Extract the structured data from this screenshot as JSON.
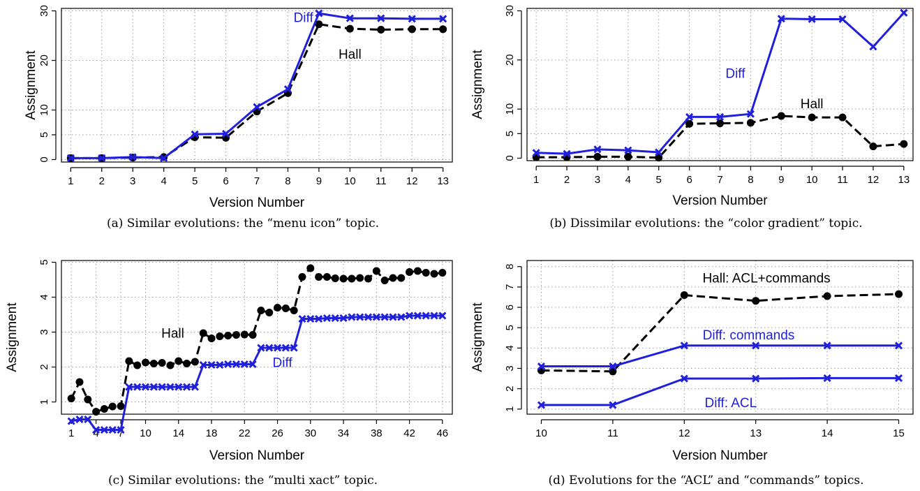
{
  "colors": {
    "hall": "#000000",
    "diff": "#1f1fdc"
  },
  "chart_data": [
    {
      "type": "line",
      "caption": "(a) Similar evolutions: the “menu icon” topic.",
      "xlabel": "Version Number",
      "ylabel": "Assignment",
      "x": [
        1,
        2,
        3,
        4,
        5,
        6,
        7,
        8,
        9,
        10,
        11,
        12,
        13
      ],
      "xticks": [
        1,
        2,
        3,
        4,
        5,
        6,
        7,
        8,
        9,
        10,
        11,
        12,
        13
      ],
      "yticks": [
        0,
        5,
        10,
        20,
        30
      ],
      "xlim": [
        0.7,
        13.3
      ],
      "ylim": [
        -0.5,
        30.5
      ],
      "grid": true,
      "series": [
        {
          "name": "Hall",
          "style": "hall",
          "values": [
            0.3,
            0.3,
            0.4,
            0.5,
            4.5,
            4.4,
            9.7,
            13.4,
            27.3,
            26.4,
            26.2,
            26.3,
            26.3
          ]
        },
        {
          "name": "Diff",
          "style": "diff",
          "values": [
            0.3,
            0.3,
            0.5,
            0.3,
            5.1,
            5.2,
            10.6,
            14.2,
            29.5,
            28.5,
            28.5,
            28.4,
            28.4
          ]
        }
      ],
      "annotations": [
        {
          "text": "Diff",
          "series": "Diff",
          "x": 8.5,
          "y": 28.6,
          "anchor": "middle"
        },
        {
          "text": "Hall",
          "series": "Hall",
          "x": 10.0,
          "y": 21.2,
          "anchor": "middle"
        }
      ]
    },
    {
      "type": "line",
      "caption": "(b) Dissimilar evolutions: the “color gradient” topic.",
      "xlabel": "Version Number",
      "ylabel": "Assignment",
      "x": [
        1,
        2,
        3,
        4,
        5,
        6,
        7,
        8,
        9,
        10,
        11,
        12,
        13
      ],
      "xticks": [
        1,
        2,
        3,
        4,
        5,
        6,
        7,
        8,
        9,
        10,
        11,
        12,
        13
      ],
      "yticks": [
        0,
        5,
        10,
        20,
        30
      ],
      "xlim": [
        0.7,
        13.3
      ],
      "ylim": [
        -0.5,
        30.5
      ],
      "grid": true,
      "series": [
        {
          "name": "Hall",
          "style": "hall",
          "values": [
            0.2,
            0.2,
            0.3,
            0.3,
            0.1,
            7.0,
            7.1,
            7.2,
            8.6,
            8.3,
            8.3,
            2.4,
            2.9
          ]
        },
        {
          "name": "Diff",
          "style": "diff",
          "values": [
            1.1,
            0.9,
            1.8,
            1.6,
            1.2,
            8.4,
            8.4,
            9.0,
            28.4,
            28.3,
            28.3,
            22.7,
            29.6
          ]
        }
      ],
      "annotations": [
        {
          "text": "Diff",
          "series": "Diff",
          "x": 7.5,
          "y": 17.2,
          "anchor": "middle"
        },
        {
          "text": "Hall",
          "series": "Hall",
          "x": 10.0,
          "y": 11.0,
          "anchor": "middle"
        }
      ]
    },
    {
      "type": "line",
      "caption": "(c) Similar evolutions: the “multi xact” topic.",
      "xlabel": "Version Number",
      "ylabel": "Assignment",
      "x": [
        1,
        2,
        3,
        4,
        5,
        6,
        7,
        8,
        9,
        10,
        11,
        12,
        13,
        14,
        15,
        16,
        17,
        18,
        19,
        20,
        21,
        22,
        23,
        24,
        25,
        26,
        27,
        28,
        29,
        30,
        31,
        32,
        33,
        34,
        35,
        36,
        37,
        38,
        39,
        40,
        41,
        42,
        43,
        44,
        45,
        46
      ],
      "xticks": [
        1,
        4,
        7,
        10,
        14,
        18,
        22,
        26,
        30,
        34,
        38,
        42,
        46
      ],
      "yticks": [
        1,
        2,
        3,
        4,
        5
      ],
      "xlim": [
        -0.2,
        47.2
      ],
      "ylim": [
        0.65,
        5.05
      ],
      "grid": true,
      "series": [
        {
          "name": "Hall",
          "style": "hall",
          "values": [
            1.1,
            1.57,
            1.07,
            0.72,
            0.8,
            0.87,
            0.88,
            2.17,
            2.05,
            2.13,
            2.1,
            2.12,
            2.05,
            2.17,
            2.1,
            2.15,
            2.97,
            2.82,
            2.88,
            2.9,
            2.92,
            2.93,
            2.92,
            3.62,
            3.56,
            3.7,
            3.68,
            3.62,
            4.58,
            4.83,
            4.58,
            4.58,
            4.54,
            4.53,
            4.53,
            4.55,
            4.53,
            4.75,
            4.48,
            4.55,
            4.55,
            4.72,
            4.75,
            4.7,
            4.67,
            4.7
          ]
        },
        {
          "name": "Diff",
          "style": "diff",
          "values": [
            0.45,
            0.5,
            0.5,
            0.2,
            0.2,
            0.2,
            0.2,
            1.43,
            1.43,
            1.43,
            1.43,
            1.43,
            1.43,
            1.43,
            1.43,
            1.43,
            2.06,
            2.06,
            2.06,
            2.08,
            2.08,
            2.08,
            2.08,
            2.55,
            2.55,
            2.55,
            2.55,
            2.55,
            3.38,
            3.38,
            3.38,
            3.4,
            3.4,
            3.4,
            3.43,
            3.43,
            3.43,
            3.43,
            3.43,
            3.43,
            3.43,
            3.47,
            3.47,
            3.47,
            3.47,
            3.47
          ]
        }
      ],
      "annotations": [
        {
          "text": "Hall",
          "series": "Hall",
          "x": 13.3,
          "y": 2.96,
          "anchor": "middle"
        },
        {
          "text": "Diff",
          "series": "Diff",
          "x": 26.6,
          "y": 2.12,
          "anchor": "middle"
        }
      ]
    },
    {
      "type": "line",
      "caption": "(d) Evolutions for the “ACL” and “commands” topics.",
      "xlabel": "Version Number",
      "ylabel": "Assignment",
      "x": [
        10,
        11,
        12,
        13,
        14,
        15
      ],
      "xticks": [
        10,
        11,
        12,
        13,
        14,
        15
      ],
      "yticks": [
        1,
        2,
        3,
        4,
        5,
        6,
        7,
        8
      ],
      "xlim": [
        9.8,
        15.2
      ],
      "ylim": [
        0.75,
        8.3
      ],
      "grid": true,
      "series": [
        {
          "name": "Hall: ACL+commands",
          "style": "hall",
          "values": [
            2.9,
            2.85,
            6.6,
            6.32,
            6.55,
            6.65
          ]
        },
        {
          "name": "Diff: commands",
          "style": "diff",
          "values": [
            3.1,
            3.1,
            4.12,
            4.12,
            4.12,
            4.12
          ]
        },
        {
          "name": "Diff: ACL",
          "style": "diff",
          "values": [
            1.2,
            1.2,
            2.5,
            2.5,
            2.52,
            2.52
          ]
        }
      ],
      "annotations": [
        {
          "text": "Hall: ACL+commands",
          "series": "Hall: ACL+commands",
          "x": 13.15,
          "y": 7.42,
          "anchor": "middle"
        },
        {
          "text": "Diff: commands",
          "series": "Diff: commands",
          "x": 12.9,
          "y": 4.62,
          "anchor": "middle"
        },
        {
          "text": "Diff: ACL",
          "series": "Diff: ACL",
          "x": 12.65,
          "y": 1.3,
          "anchor": "middle"
        }
      ]
    }
  ]
}
